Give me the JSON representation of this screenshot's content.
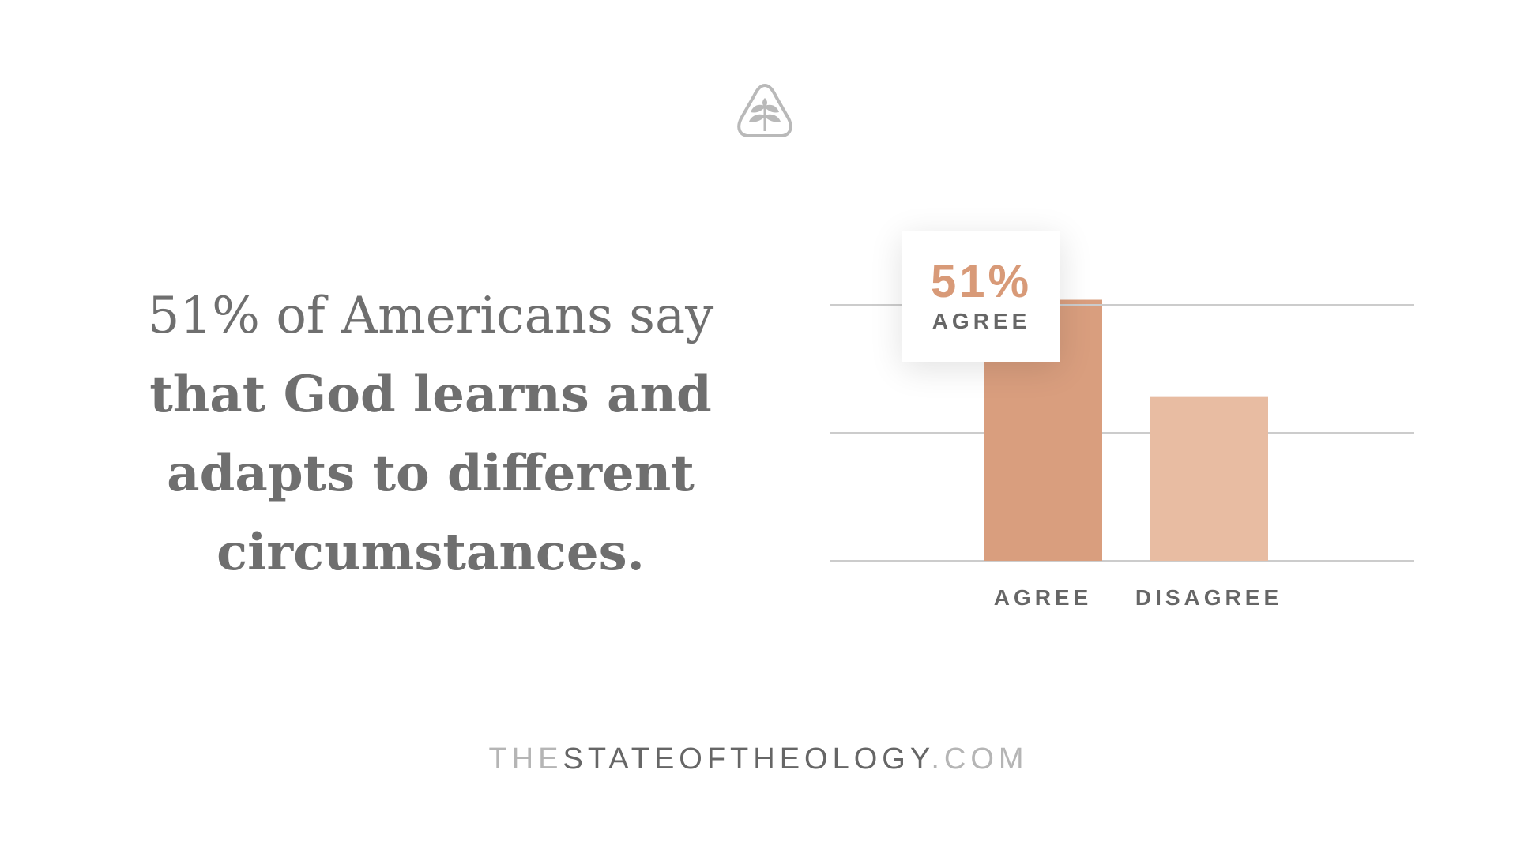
{
  "headline": {
    "line1": "51% of Americans say",
    "line2": "that God learns and",
    "line3": "adapts to different",
    "line4": "circumstances."
  },
  "callout": {
    "value": "51%",
    "label": "AGREE"
  },
  "footer": {
    "prefix": "THE",
    "main": "STATEOFTHEOLOGY",
    "suffix": ".COM"
  },
  "chart_data": {
    "type": "bar",
    "categories": [
      "AGREE",
      "DISAGREE"
    ],
    "values": [
      51,
      32
    ],
    "ylim": [
      0,
      50
    ],
    "grid": true,
    "colors": [
      "#d99e7e",
      "#e8bca2"
    ],
    "gridline_color": "#cccccc"
  },
  "logo": {
    "icon": "tree-in-triangle-icon",
    "color": "#b9b9b9"
  }
}
